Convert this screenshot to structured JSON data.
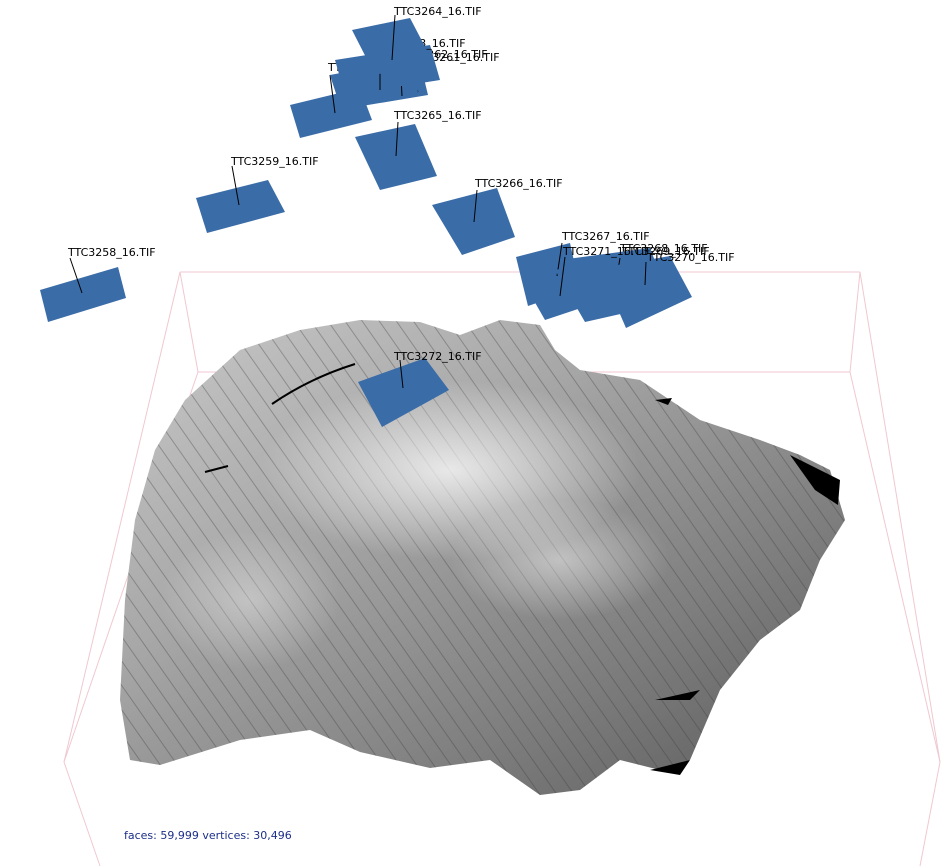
{
  "viewport": {
    "background": "#ffffff",
    "bbox_color": "#f0c8d0",
    "camera_color": "#3a6ca8",
    "label_color": "#000000",
    "stats_color": "#1c2f8a"
  },
  "cameras": [
    {
      "label": "TTC3258_16.TIF"
    },
    {
      "label": "TTC3259_16.TIF"
    },
    {
      "label": "TTC3260_16.TIF"
    },
    {
      "label": "TTC3261_16.TIF"
    },
    {
      "label": "TTC3262_16.TIF"
    },
    {
      "label": "TTC3263_16.TIF"
    },
    {
      "label": "TTC3264_16.TIF"
    },
    {
      "label": "TTC3265_16.TIF"
    },
    {
      "label": "TTC3266_16.TIF"
    },
    {
      "label": "TTC3267_16.TIF"
    },
    {
      "label": "TTC3268_16.TIF"
    },
    {
      "label": "TTC3269_16.TIF"
    },
    {
      "label": "TTC3270_16.TIF"
    },
    {
      "label": "TTC3271_16.TIF"
    },
    {
      "label": "TTC3272_16.TIF"
    }
  ],
  "stats": {
    "text": "faces: 59,999 vertices: 30,496"
  }
}
